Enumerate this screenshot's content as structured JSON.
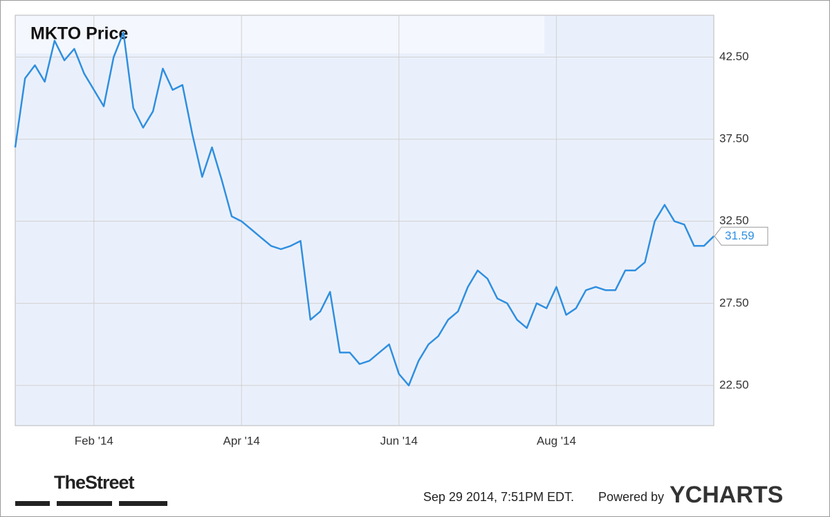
{
  "chart_data": {
    "type": "line",
    "title": "MKTO Price",
    "categories": [
      null,
      null,
      null,
      null,
      null,
      null,
      null,
      null,
      "Feb '14",
      null,
      null,
      null,
      null,
      null,
      null,
      null,
      null,
      null,
      null,
      null,
      null,
      null,
      null,
      "Apr '14",
      null,
      null,
      null,
      null,
      null,
      null,
      null,
      null,
      null,
      null,
      null,
      null,
      null,
      null,
      null,
      "Jun '14",
      null,
      null,
      null,
      null,
      null,
      null,
      null,
      null,
      null,
      null,
      null,
      null,
      null,
      null,
      null,
      "Aug '14",
      null,
      null,
      null,
      null,
      null,
      null,
      null,
      null,
      null,
      null,
      null,
      null,
      null,
      null,
      null,
      null
    ],
    "series": [
      {
        "name": "MKTO Price",
        "color": "#2f8fe0",
        "values": [
          37.0,
          41.2,
          42.0,
          41.0,
          43.5,
          42.3,
          43.0,
          41.5,
          40.5,
          39.5,
          42.5,
          44.0,
          39.4,
          38.2,
          39.2,
          41.8,
          40.5,
          40.8,
          37.8,
          35.2,
          37.0,
          35.0,
          32.8,
          32.5,
          32.0,
          31.5,
          31.0,
          30.8,
          31.0,
          31.3,
          26.5,
          27.0,
          28.2,
          24.5,
          24.5,
          23.8,
          24.0,
          24.5,
          25.0,
          23.2,
          22.5,
          24.0,
          25.0,
          25.5,
          26.5,
          27.0,
          28.5,
          29.5,
          29.0,
          27.8,
          27.5,
          26.5,
          26.0,
          27.5,
          27.2,
          28.5,
          26.8,
          27.2,
          28.3,
          28.5,
          28.3,
          28.3,
          29.5,
          29.5,
          30.0,
          32.5,
          33.5,
          32.5,
          32.3,
          31.0,
          31.0,
          31.59
        ],
        "value_labels": [
          null,
          null,
          null,
          null,
          null,
          null,
          null,
          null,
          null,
          null,
          null,
          null,
          null,
          null,
          null,
          null,
          null,
          null,
          null,
          null,
          null,
          null,
          null,
          null,
          null,
          null,
          null,
          null,
          null,
          null,
          null,
          null,
          null,
          null,
          null,
          null,
          null,
          null,
          null,
          null,
          null,
          null,
          null,
          null,
          null,
          null,
          null,
          null,
          null,
          null,
          null,
          null,
          null,
          null,
          null,
          null,
          null,
          null,
          null,
          null,
          null,
          null,
          null,
          null,
          null,
          null,
          null,
          null,
          null,
          null,
          null,
          "31.59"
        ]
      }
    ],
    "ylim": [
      20.05,
      45.05
    ],
    "yticks": [
      {
        "value": 22.5,
        "label": "22.50"
      },
      {
        "value": 27.5,
        "label": "27.50"
      },
      {
        "value": 32.5,
        "label": "32.50"
      },
      {
        "value": 37.5,
        "label": "37.50"
      },
      {
        "value": 42.5,
        "label": "42.50"
      }
    ],
    "grid": true
  },
  "footer": {
    "source": "TheStreet",
    "timestamp": "Sep 29 2014, 7:51PM EDT.",
    "powered": "Powered by",
    "brand": "YCHARTS"
  }
}
